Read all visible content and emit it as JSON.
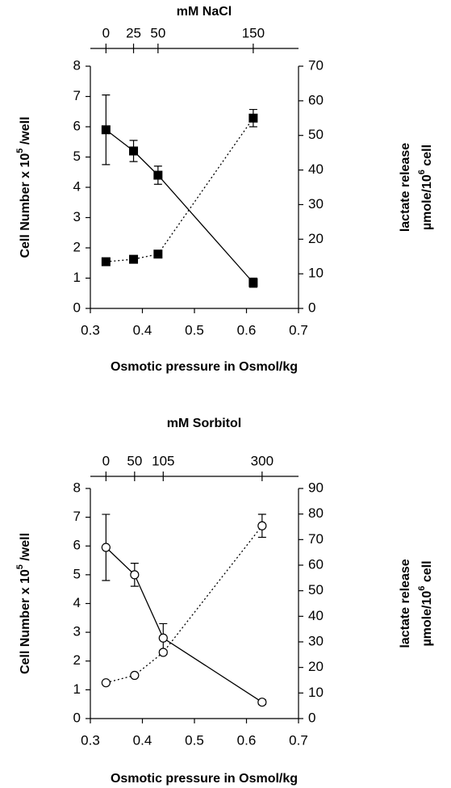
{
  "chart_data": [
    {
      "type": "line",
      "x2_label": "mM NaCl",
      "x_label": "Osmotic pressure in Osmol/kg",
      "y_label": [
        "Cell Number x 10",
        "5",
        " /well"
      ],
      "y2_label": [
        "lactate release",
        "µmole/10",
        "6",
        " cell"
      ],
      "xlim": [
        0.3,
        0.7
      ],
      "xticks": [
        0.3,
        0.4,
        0.5,
        0.6,
        0.7
      ],
      "x2ticks": [
        {
          "value": 0.33,
          "label": "0"
        },
        {
          "value": 0.383,
          "label": "25"
        },
        {
          "value": 0.43,
          "label": "50"
        },
        {
          "value": 0.613,
          "label": "150"
        }
      ],
      "ylim": [
        0,
        8
      ],
      "yticks": [
        0,
        1,
        2,
        3,
        4,
        5,
        6,
        7,
        8
      ],
      "y2lim": [
        0,
        70
      ],
      "y2ticks": [
        0,
        10,
        20,
        30,
        40,
        50,
        60,
        70
      ],
      "x": [
        0.33,
        0.383,
        0.43,
        0.613
      ],
      "series": [
        {
          "axis": "y",
          "line": "solid",
          "marker": "square",
          "marker_fill": "#000000",
          "color": "#000000",
          "values": [
            5.9,
            5.2,
            4.4,
            0.85
          ],
          "errors": [
            1.15,
            0.35,
            0.3,
            0.15
          ]
        },
        {
          "axis": "y2",
          "line": "dotted",
          "marker": "square",
          "marker_fill": "#000000",
          "color": "#000000",
          "values": [
            13.5,
            14.2,
            15.7,
            55
          ],
          "errors": [
            0.6,
            0.6,
            0.8,
            2.5
          ]
        }
      ]
    },
    {
      "type": "line",
      "x2_label": "mM Sorbitol",
      "x_label": "Osmotic pressure in Osmol/kg",
      "y_label": [
        "Cell Number x 10",
        "5",
        " /well"
      ],
      "y2_label": [
        "lactate release",
        "µmole/10",
        "6",
        " cell"
      ],
      "xlim": [
        0.3,
        0.7
      ],
      "xticks": [
        0.3,
        0.4,
        0.5,
        0.6,
        0.7
      ],
      "x2ticks": [
        {
          "value": 0.33,
          "label": "0"
        },
        {
          "value": 0.385,
          "label": "50"
        },
        {
          "value": 0.44,
          "label": "105"
        },
        {
          "value": 0.63,
          "label": "300"
        }
      ],
      "ylim": [
        0,
        8
      ],
      "yticks": [
        0,
        1,
        2,
        3,
        4,
        5,
        6,
        7,
        8
      ],
      "y2lim": [
        0,
        90
      ],
      "y2ticks": [
        0,
        10,
        20,
        30,
        40,
        50,
        60,
        70,
        80,
        90
      ],
      "x": [
        0.33,
        0.385,
        0.44,
        0.63
      ],
      "series": [
        {
          "axis": "y",
          "line": "solid",
          "marker": "circle",
          "marker_fill": "#ffffff",
          "color": "#000000",
          "values": [
            5.95,
            5.0,
            2.8,
            0.57
          ],
          "errors": [
            1.15,
            0.4,
            0.5,
            0.08
          ]
        },
        {
          "axis": "y2",
          "line": "dotted",
          "marker": "circle",
          "marker_fill": "#ffffff",
          "color": "#000000",
          "values": [
            14,
            16.9,
            25.9,
            75.4
          ],
          "errors": [
            0.5,
            0.5,
            0.8,
            4.5
          ]
        }
      ]
    }
  ]
}
